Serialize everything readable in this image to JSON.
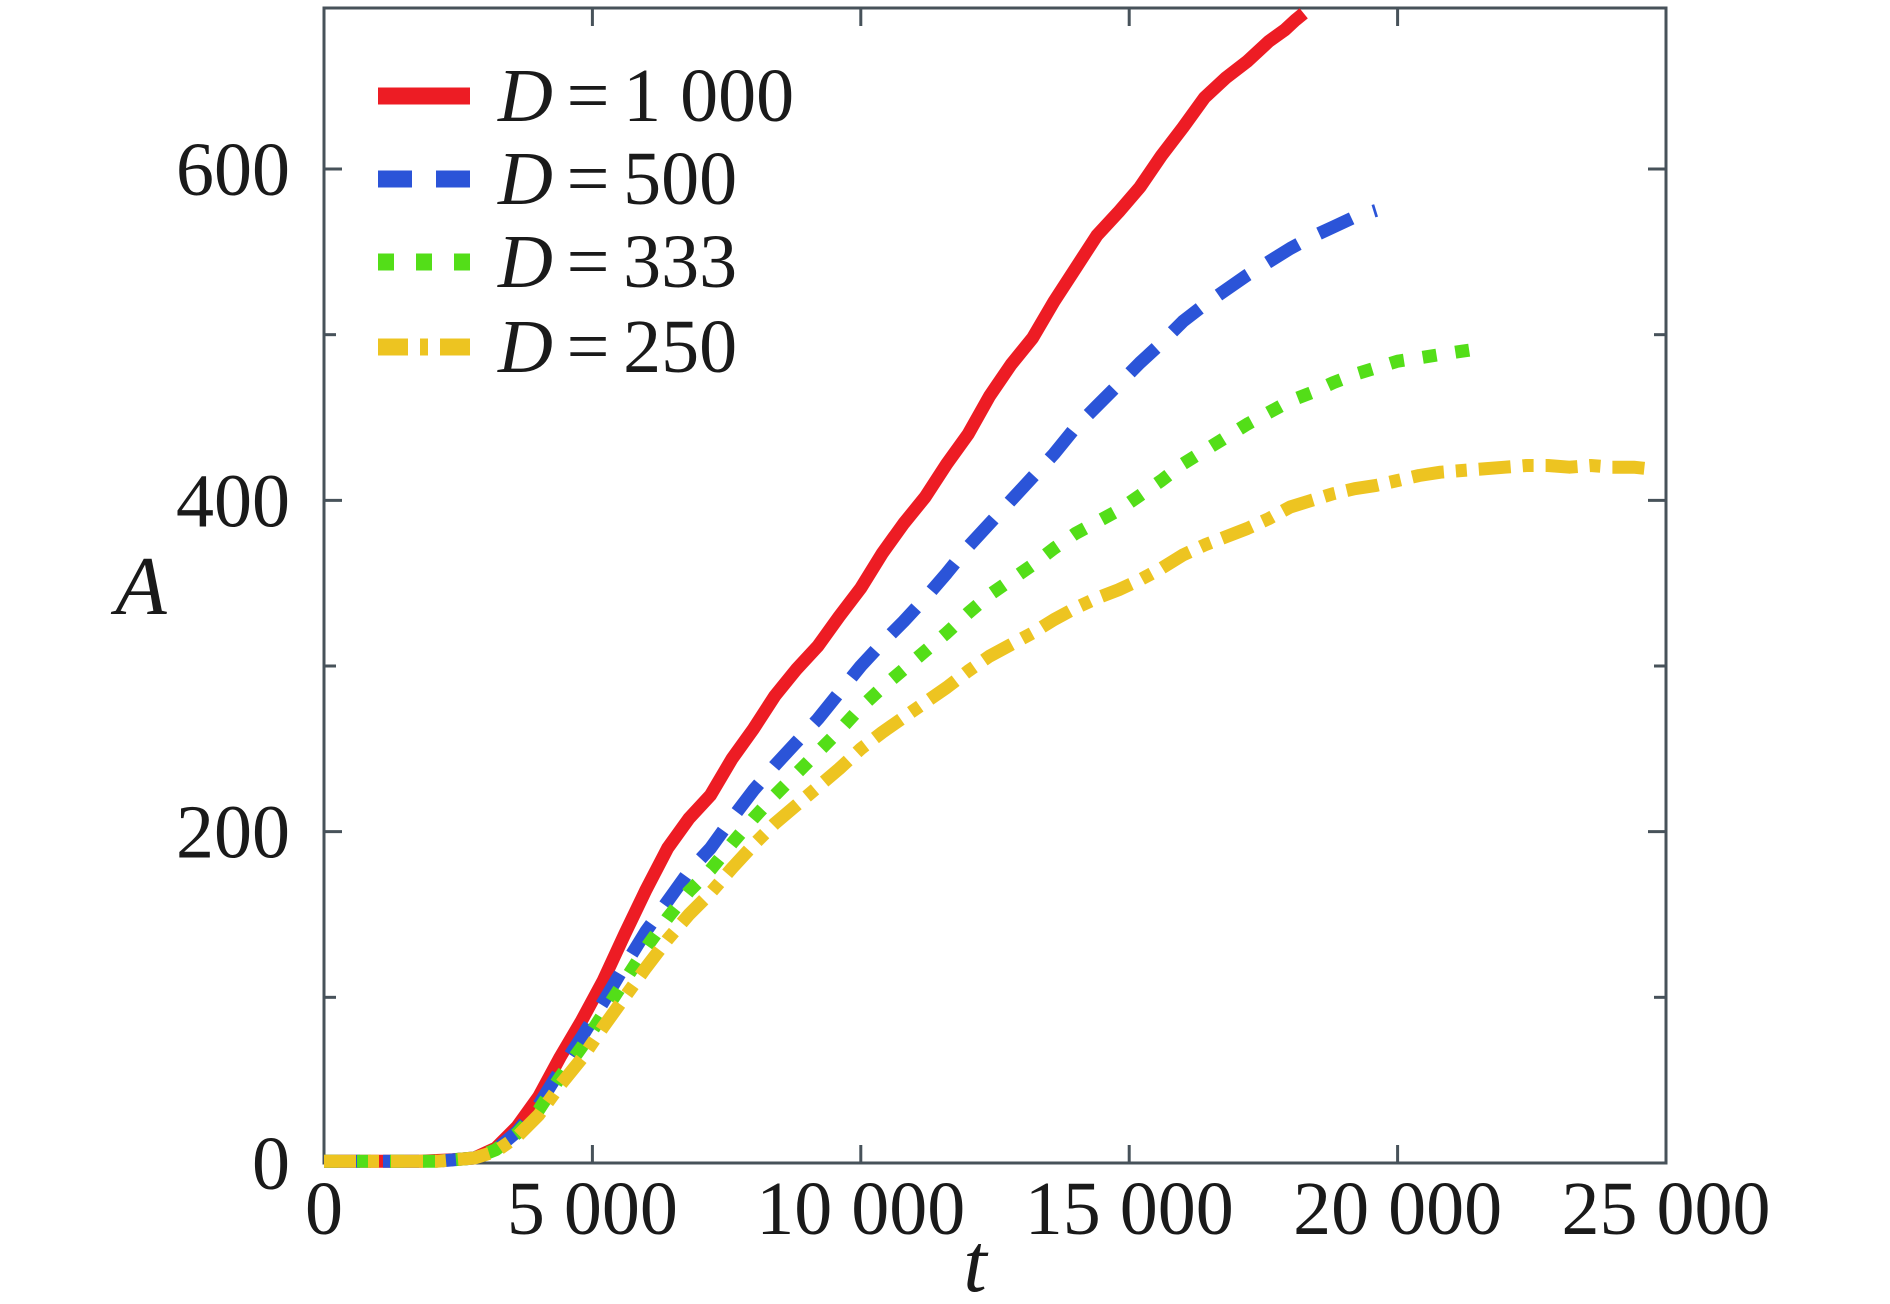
{
  "figure": {
    "background": "#ffffff",
    "frame_color": "#47525a",
    "text_color": "#1a1a1a"
  },
  "axes": {
    "x_label": "t",
    "y_label": "A"
  },
  "legend": {
    "items": [
      {
        "var": "D",
        "eq": "=",
        "value": "1 000",
        "color": "#ed1c24",
        "dash": "solid",
        "swatch_dasharray": ""
      },
      {
        "var": "D",
        "eq": "=",
        "value": "500",
        "color": "#2b54d8",
        "dash": "dashed",
        "swatch_dasharray": "34 24"
      },
      {
        "var": "D",
        "eq": "=",
        "value": "333",
        "color": "#53de18",
        "dash": "dotted",
        "swatch_dasharray": "16 22"
      },
      {
        "var": "D",
        "eq": "=",
        "value": "250",
        "color": "#edc421",
        "dash": "dash-dot",
        "swatch_dasharray": "30 12 8 12"
      }
    ]
  },
  "chart_data": {
    "type": "line",
    "title": "",
    "xlabel": "t",
    "ylabel": "A",
    "xlim": [
      0,
      25000
    ],
    "ylim": [
      0,
      697
    ],
    "grid": false,
    "legend_position": "top-left",
    "x_ticks": [
      {
        "v": 0,
        "label": "0"
      },
      {
        "v": 5000,
        "label": "5 000"
      },
      {
        "v": 10000,
        "label": "10 000"
      },
      {
        "v": 15000,
        "label": "15 000"
      },
      {
        "v": 20000,
        "label": "20 000"
      },
      {
        "v": 25000,
        "label": "25 000"
      }
    ],
    "y_ticks": [
      {
        "v": 0,
        "label": "0"
      },
      {
        "v": 200,
        "label": "200"
      },
      {
        "v": 400,
        "label": "400"
      },
      {
        "v": 600,
        "label": "600"
      }
    ],
    "y_minor_ticks": [
      100,
      300,
      500
    ],
    "series": [
      {
        "name": "D = 1 000",
        "D": 1000,
        "color": "#ed1c24",
        "dash": "solid",
        "width": 13,
        "dasharray": "",
        "points": [
          [
            0,
            1
          ],
          [
            600,
            1
          ],
          [
            1200,
            1
          ],
          [
            1800,
            1
          ],
          [
            2400,
            2
          ],
          [
            2800,
            3
          ],
          [
            3200,
            9
          ],
          [
            3600,
            22
          ],
          [
            4000,
            40
          ],
          [
            4400,
            64
          ],
          [
            4800,
            86
          ],
          [
            5200,
            110
          ],
          [
            5600,
            138
          ],
          [
            6000,
            165
          ],
          [
            6400,
            190
          ],
          [
            6800,
            208
          ],
          [
            7200,
            222
          ],
          [
            7600,
            244
          ],
          [
            8000,
            262
          ],
          [
            8400,
            282
          ],
          [
            8800,
            298
          ],
          [
            9200,
            312
          ],
          [
            9600,
            330
          ],
          [
            10000,
            347
          ],
          [
            10400,
            368
          ],
          [
            10800,
            386
          ],
          [
            11200,
            402
          ],
          [
            11600,
            422
          ],
          [
            12000,
            440
          ],
          [
            12400,
            463
          ],
          [
            12800,
            482
          ],
          [
            13200,
            498
          ],
          [
            13600,
            520
          ],
          [
            14000,
            540
          ],
          [
            14400,
            560
          ],
          [
            14800,
            574
          ],
          [
            15200,
            589
          ],
          [
            15600,
            608
          ],
          [
            16000,
            625
          ],
          [
            16400,
            643
          ],
          [
            16800,
            655
          ],
          [
            17200,
            665
          ],
          [
            17600,
            677
          ],
          [
            17900,
            684
          ],
          [
            18100,
            690
          ],
          [
            18250,
            694
          ]
        ]
      },
      {
        "name": "D = 500",
        "D": 500,
        "color": "#2b54d8",
        "dash": "dashed",
        "width": 13,
        "dasharray": "36 23",
        "points": [
          [
            0,
            1
          ],
          [
            700,
            1
          ],
          [
            1400,
            1
          ],
          [
            2100,
            1
          ],
          [
            2800,
            3
          ],
          [
            3200,
            8
          ],
          [
            3600,
            19
          ],
          [
            4000,
            35
          ],
          [
            4400,
            56
          ],
          [
            4800,
            76
          ],
          [
            5200,
            97
          ],
          [
            5600,
            119
          ],
          [
            6000,
            140
          ],
          [
            6400,
            158
          ],
          [
            6800,
            176
          ],
          [
            7200,
            190
          ],
          [
            7600,
            208
          ],
          [
            8000,
            225
          ],
          [
            8400,
            240
          ],
          [
            8800,
            254
          ],
          [
            9200,
            268
          ],
          [
            9600,
            284
          ],
          [
            10000,
            300
          ],
          [
            10400,
            314
          ],
          [
            10800,
            327
          ],
          [
            11200,
            341
          ],
          [
            11600,
            356
          ],
          [
            12000,
            372
          ],
          [
            12400,
            386
          ],
          [
            12800,
            400
          ],
          [
            13200,
            414
          ],
          [
            13600,
            428
          ],
          [
            14000,
            444
          ],
          [
            14400,
            457
          ],
          [
            14800,
            470
          ],
          [
            15200,
            483
          ],
          [
            15600,
            495
          ],
          [
            16000,
            508
          ],
          [
            16400,
            518
          ],
          [
            16800,
            527
          ],
          [
            17200,
            536
          ],
          [
            17600,
            544
          ],
          [
            18000,
            552
          ],
          [
            18400,
            559
          ],
          [
            18800,
            565
          ],
          [
            19200,
            571
          ],
          [
            19600,
            575
          ]
        ]
      },
      {
        "name": "D = 333",
        "D": 333,
        "color": "#53de18",
        "dash": "dotted",
        "width": 13,
        "dasharray": "14 19",
        "points": [
          [
            0,
            1
          ],
          [
            700,
            1
          ],
          [
            1400,
            1
          ],
          [
            2100,
            1
          ],
          [
            2800,
            3
          ],
          [
            3200,
            8
          ],
          [
            3600,
            18
          ],
          [
            4000,
            32
          ],
          [
            4400,
            52
          ],
          [
            4800,
            70
          ],
          [
            5200,
            90
          ],
          [
            5600,
            110
          ],
          [
            6000,
            130
          ],
          [
            6400,
            148
          ],
          [
            6800,
            164
          ],
          [
            7200,
            177
          ],
          [
            7600,
            193
          ],
          [
            8000,
            208
          ],
          [
            8400,
            222
          ],
          [
            8800,
            235
          ],
          [
            9200,
            248
          ],
          [
            9600,
            261
          ],
          [
            10000,
            275
          ],
          [
            10400,
            287
          ],
          [
            10800,
            298
          ],
          [
            11200,
            309
          ],
          [
            11600,
            320
          ],
          [
            12000,
            332
          ],
          [
            12400,
            343
          ],
          [
            12800,
            352
          ],
          [
            13200,
            361
          ],
          [
            13600,
            371
          ],
          [
            14000,
            380
          ],
          [
            14400,
            387
          ],
          [
            14800,
            394
          ],
          [
            15200,
            403
          ],
          [
            15600,
            412
          ],
          [
            16000,
            422
          ],
          [
            16400,
            430
          ],
          [
            16800,
            438
          ],
          [
            17200,
            446
          ],
          [
            17600,
            453
          ],
          [
            18000,
            460
          ],
          [
            18400,
            465
          ],
          [
            18800,
            471
          ],
          [
            19200,
            476
          ],
          [
            19600,
            480
          ],
          [
            20000,
            484
          ],
          [
            20400,
            486
          ],
          [
            20800,
            488
          ],
          [
            21200,
            490
          ],
          [
            21400,
            491
          ]
        ]
      },
      {
        "name": "D = 250",
        "D": 250,
        "color": "#edc421",
        "dash": "dash-dot",
        "width": 13,
        "dasharray": "32 12 11 12",
        "points": [
          [
            0,
            1
          ],
          [
            700,
            1
          ],
          [
            1400,
            1
          ],
          [
            2100,
            1
          ],
          [
            2800,
            3
          ],
          [
            3200,
            7
          ],
          [
            3600,
            16
          ],
          [
            4000,
            29
          ],
          [
            4400,
            47
          ],
          [
            4800,
            63
          ],
          [
            5200,
            82
          ],
          [
            5600,
            100
          ],
          [
            6000,
            118
          ],
          [
            6400,
            135
          ],
          [
            6800,
            150
          ],
          [
            7200,
            163
          ],
          [
            7600,
            178
          ],
          [
            8000,
            192
          ],
          [
            8400,
            205
          ],
          [
            8800,
            216
          ],
          [
            9200,
            227
          ],
          [
            9600,
            238
          ],
          [
            10000,
            250
          ],
          [
            10400,
            260
          ],
          [
            10800,
            269
          ],
          [
            11200,
            278
          ],
          [
            11600,
            287
          ],
          [
            12000,
            297
          ],
          [
            12400,
            306
          ],
          [
            12800,
            313
          ],
          [
            13200,
            320
          ],
          [
            13600,
            328
          ],
          [
            14000,
            335
          ],
          [
            14400,
            341
          ],
          [
            14800,
            346
          ],
          [
            15200,
            352
          ],
          [
            15600,
            359
          ],
          [
            16000,
            367
          ],
          [
            16400,
            373
          ],
          [
            16800,
            378
          ],
          [
            17200,
            383
          ],
          [
            17600,
            389
          ],
          [
            18000,
            396
          ],
          [
            18400,
            400
          ],
          [
            18800,
            404
          ],
          [
            19200,
            407
          ],
          [
            19600,
            409
          ],
          [
            20000,
            412
          ],
          [
            20400,
            415
          ],
          [
            20800,
            417
          ],
          [
            21200,
            418
          ],
          [
            21600,
            419
          ],
          [
            22000,
            420
          ],
          [
            22400,
            421
          ],
          [
            22800,
            421
          ],
          [
            23200,
            420
          ],
          [
            23600,
            421
          ],
          [
            24000,
            420
          ],
          [
            24400,
            420
          ],
          [
            24700,
            419
          ]
        ]
      }
    ]
  }
}
